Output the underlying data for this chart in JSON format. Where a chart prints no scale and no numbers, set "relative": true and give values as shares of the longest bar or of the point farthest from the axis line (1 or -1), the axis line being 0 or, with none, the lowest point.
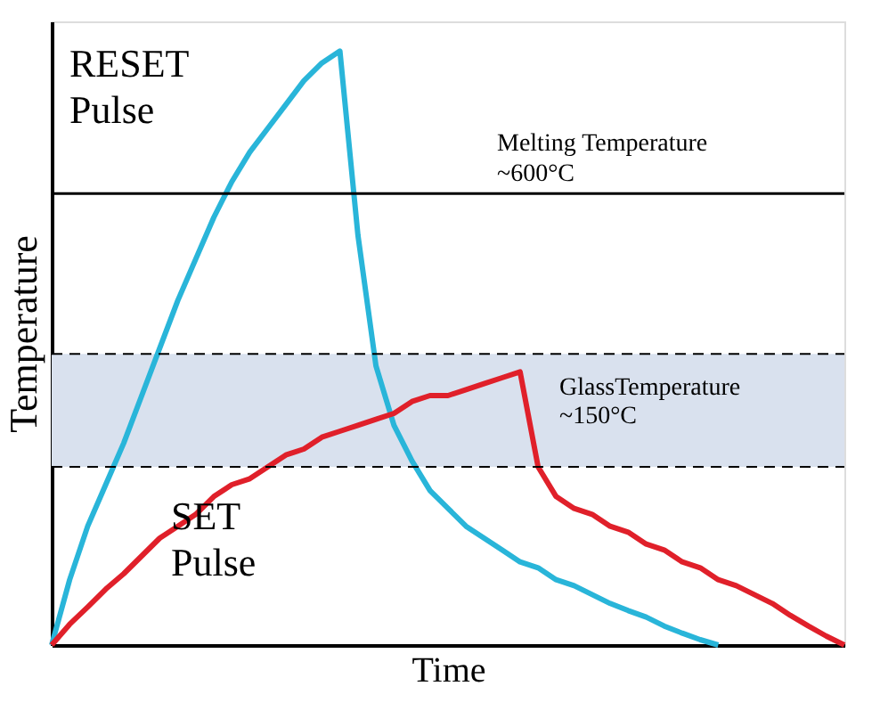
{
  "chart_data": {
    "type": "line",
    "relative": true,
    "xlabel": "Time",
    "ylabel": "Temperature",
    "categories": [
      null,
      null,
      null,
      null,
      null,
      null,
      null,
      null,
      null,
      null,
      null,
      null,
      null,
      null,
      null,
      null,
      null,
      null,
      null,
      null,
      null,
      null,
      null,
      null,
      null,
      null,
      null,
      null,
      null,
      null,
      null,
      null,
      null,
      null,
      null,
      null,
      null,
      null,
      null,
      null,
      null,
      null,
      null,
      null,
      null
    ],
    "series": [
      {
        "name": "RESET Pulse",
        "color": "#29b5d9",
        "values": [
          0,
          0.11,
          0.2,
          0.27,
          0.34,
          0.42,
          0.5,
          0.58,
          0.65,
          0.72,
          0.78,
          0.83,
          0.87,
          0.91,
          0.95,
          0.98,
          1,
          0.69,
          0.47,
          0.37,
          0.31,
          0.26,
          0.23,
          0.2,
          0.18,
          0.16,
          0.14,
          0.13,
          0.11,
          0.1,
          0.085,
          0.07,
          0.058,
          0.047,
          0.032,
          0.02,
          0.009,
          0,
          null,
          null,
          null,
          null,
          null,
          null,
          null
        ]
      },
      {
        "name": "SET Pulse",
        "color": "#e0202a",
        "values": [
          0,
          0.035,
          0.064,
          0.094,
          0.12,
          0.15,
          0.18,
          0.2,
          0.22,
          0.25,
          0.27,
          0.28,
          0.3,
          0.32,
          0.33,
          0.35,
          0.36,
          0.37,
          0.38,
          0.39,
          0.41,
          0.42,
          0.42,
          0.43,
          0.44,
          0.45,
          0.46,
          0.3,
          0.25,
          0.23,
          0.22,
          0.2,
          0.19,
          0.17,
          0.16,
          0.14,
          0.13,
          0.11,
          0.1,
          0.085,
          0.07,
          0.05,
          0.032,
          0.015,
          0
        ]
      }
    ],
    "ref_lines": [
      {
        "axis": "y",
        "value": 0.76,
        "label": "Melting Temperature\n~600°C",
        "color": "#000000",
        "line_style": "solid"
      },
      {
        "axis": "y",
        "value": 0.49,
        "color": "#000000",
        "line_style": "dashed"
      },
      {
        "axis": "y",
        "value": 0.3,
        "color": "#000000",
        "line_style": "dashed"
      }
    ],
    "bands": [
      {
        "axis": "y",
        "from": 0.3,
        "to": 0.49,
        "label": "GlassTemperature\n~150°C",
        "color": "#d9e1ee"
      }
    ],
    "grid": false,
    "legend": false,
    "tick_labels": false,
    "line_style": "solid",
    "marker": "none"
  }
}
